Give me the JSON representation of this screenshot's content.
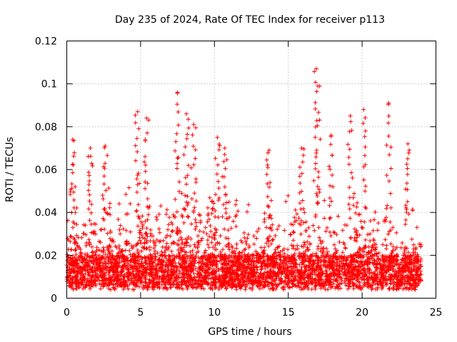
{
  "chart_data": {
    "type": "scatter",
    "title": "Day 235 of 2024, Rate Of TEC Index for receiver p113",
    "xlabel": "GPS time / hours",
    "ylabel": "ROTI / TECUs",
    "xlim": [
      0,
      25
    ],
    "ylim": [
      0,
      0.12
    ],
    "x_ticks": [
      0,
      5,
      10,
      15,
      20,
      25
    ],
    "x_tick_labels": [
      "0",
      "5",
      "10",
      "15",
      "20",
      "25"
    ],
    "y_ticks": [
      0,
      0.02,
      0.04,
      0.06,
      0.08,
      0.1,
      0.12
    ],
    "y_tick_labels": [
      "0",
      "0.02",
      "0.04",
      "0.06",
      "0.08",
      "0.1",
      "0.12"
    ],
    "grid": true,
    "marker": "+",
    "color": "#ff0000",
    "data_range_x": [
      0,
      24
    ],
    "series": [
      {
        "name": "ROTI",
        "envelope": {
          "x": [
            0,
            0.5,
            1,
            1.5,
            2,
            2.5,
            3,
            3.5,
            4,
            4.5,
            5,
            5.5,
            6,
            6.5,
            7,
            7.5,
            8,
            8.5,
            9,
            9.5,
            10,
            10.5,
            11,
            11.5,
            12,
            12.5,
            13,
            13.5,
            14,
            14.5,
            15,
            15.5,
            16,
            16.5,
            17,
            17.5,
            18,
            18.5,
            19,
            19.5,
            20,
            20.5,
            21,
            21.5,
            22,
            22.5,
            23,
            23.5,
            24
          ],
          "typical_max": [
            0.035,
            0.06,
            0.05,
            0.045,
            0.05,
            0.055,
            0.045,
            0.045,
            0.05,
            0.06,
            0.065,
            0.055,
            0.035,
            0.045,
            0.045,
            0.06,
            0.06,
            0.045,
            0.045,
            0.055,
            0.055,
            0.05,
            0.045,
            0.045,
            0.045,
            0.04,
            0.04,
            0.045,
            0.045,
            0.045,
            0.05,
            0.045,
            0.045,
            0.045,
            0.055,
            0.05,
            0.04,
            0.04,
            0.04,
            0.05,
            0.05,
            0.045,
            0.04,
            0.045,
            0.045,
            0.035,
            0.04,
            0.04,
            0.035
          ]
        },
        "peaks": [
          {
            "x": 0.4,
            "y": 0.074
          },
          {
            "x": 1.6,
            "y": 0.07
          },
          {
            "x": 2.6,
            "y": 0.071
          },
          {
            "x": 4.8,
            "y": 0.087
          },
          {
            "x": 5.4,
            "y": 0.084
          },
          {
            "x": 7.5,
            "y": 0.096
          },
          {
            "x": 8.1,
            "y": 0.086
          },
          {
            "x": 8.6,
            "y": 0.081
          },
          {
            "x": 10.2,
            "y": 0.075
          },
          {
            "x": 10.7,
            "y": 0.07
          },
          {
            "x": 13.7,
            "y": 0.069
          },
          {
            "x": 15.9,
            "y": 0.07
          },
          {
            "x": 16.9,
            "y": 0.107
          },
          {
            "x": 17.0,
            "y": 0.099
          },
          {
            "x": 17.9,
            "y": 0.076
          },
          {
            "x": 19.2,
            "y": 0.085
          },
          {
            "x": 20.1,
            "y": 0.088
          },
          {
            "x": 21.8,
            "y": 0.091
          },
          {
            "x": 23.1,
            "y": 0.072
          }
        ]
      }
    ]
  }
}
